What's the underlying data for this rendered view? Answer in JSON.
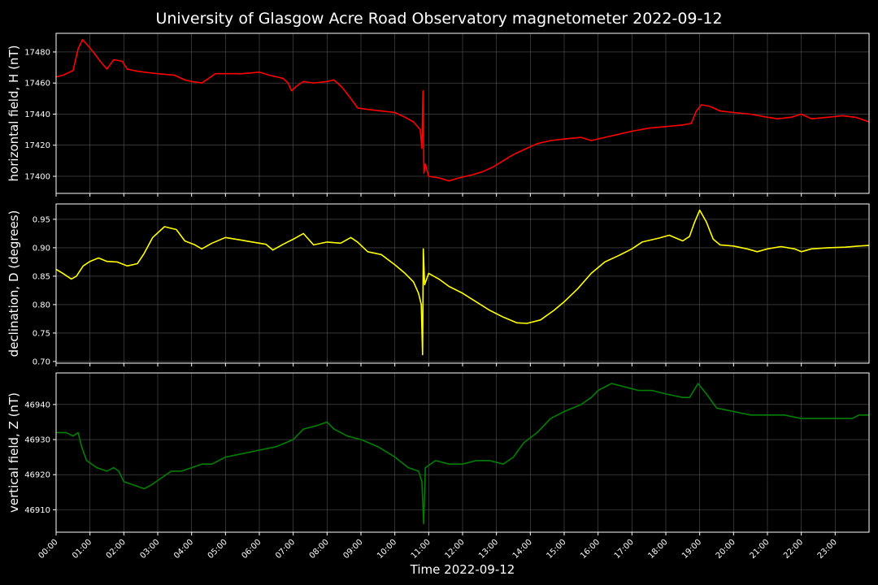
{
  "chart_data": {
    "type": "line",
    "title": "University of Glasgow Acre Road Observatory magnetometer 2022-09-12",
    "xlabel": "Time 2022-09-12",
    "x_ticks": [
      "00:00",
      "01:00",
      "02:00",
      "03:00",
      "04:00",
      "05:00",
      "06:00",
      "07:00",
      "08:00",
      "09:00",
      "10:00",
      "11:00",
      "12:00",
      "13:00",
      "14:00",
      "15:00",
      "16:00",
      "17:00",
      "18:00",
      "19:00",
      "20:00",
      "21:00",
      "22:00",
      "23:00"
    ],
    "xlim_hours": [
      0,
      24
    ],
    "grid": true,
    "panels": [
      {
        "id": "h",
        "ylabel": "horizontal field, H (nT)",
        "color": "#ff0000",
        "ylim": [
          17389,
          17492
        ],
        "yticks": [
          17400,
          17420,
          17440,
          17460,
          17480
        ],
        "ytick_labels": [
          "17400",
          "17420",
          "17440",
          "17460",
          "17480"
        ],
        "points": [
          [
            0.0,
            17464
          ],
          [
            0.2,
            17465
          ],
          [
            0.5,
            17468
          ],
          [
            0.65,
            17482
          ],
          [
            0.78,
            17488
          ],
          [
            0.9,
            17485
          ],
          [
            1.1,
            17480
          ],
          [
            1.3,
            17474
          ],
          [
            1.5,
            17469
          ],
          [
            1.7,
            17475
          ],
          [
            1.95,
            17474
          ],
          [
            2.1,
            17469
          ],
          [
            2.3,
            17468
          ],
          [
            2.6,
            17467
          ],
          [
            3.0,
            17466
          ],
          [
            3.5,
            17465
          ],
          [
            3.8,
            17462
          ],
          [
            4.0,
            17461
          ],
          [
            4.3,
            17460
          ],
          [
            4.5,
            17463
          ],
          [
            4.7,
            17466
          ],
          [
            5.0,
            17466
          ],
          [
            5.5,
            17466
          ],
          [
            6.0,
            17467
          ],
          [
            6.3,
            17465
          ],
          [
            6.7,
            17463
          ],
          [
            6.85,
            17460
          ],
          [
            6.95,
            17455
          ],
          [
            7.1,
            17458
          ],
          [
            7.3,
            17461
          ],
          [
            7.6,
            17460
          ],
          [
            8.0,
            17461
          ],
          [
            8.2,
            17462
          ],
          [
            8.45,
            17457
          ],
          [
            8.7,
            17450
          ],
          [
            8.9,
            17444
          ],
          [
            9.2,
            17443
          ],
          [
            9.6,
            17442
          ],
          [
            10.0,
            17441
          ],
          [
            10.3,
            17438
          ],
          [
            10.55,
            17435
          ],
          [
            10.75,
            17430
          ],
          [
            10.8,
            17418
          ],
          [
            10.83,
            17455
          ],
          [
            10.86,
            17402
          ],
          [
            10.9,
            17408
          ],
          [
            11.0,
            17400
          ],
          [
            11.3,
            17399
          ],
          [
            11.6,
            17397
          ],
          [
            11.9,
            17399
          ],
          [
            12.3,
            17401
          ],
          [
            12.6,
            17403
          ],
          [
            12.9,
            17406
          ],
          [
            13.2,
            17410
          ],
          [
            13.5,
            17414
          ],
          [
            13.8,
            17417
          ],
          [
            14.2,
            17421
          ],
          [
            14.6,
            17423
          ],
          [
            15.0,
            17424
          ],
          [
            15.5,
            17425
          ],
          [
            15.8,
            17423
          ],
          [
            16.2,
            17425
          ],
          [
            16.6,
            17427
          ],
          [
            17.0,
            17429
          ],
          [
            17.5,
            17431
          ],
          [
            18.0,
            17432
          ],
          [
            18.5,
            17433
          ],
          [
            18.75,
            17434
          ],
          [
            18.9,
            17442
          ],
          [
            19.05,
            17446
          ],
          [
            19.3,
            17445
          ],
          [
            19.6,
            17442
          ],
          [
            20.0,
            17441
          ],
          [
            20.5,
            17440
          ],
          [
            21.0,
            17438
          ],
          [
            21.3,
            17437
          ],
          [
            21.7,
            17438
          ],
          [
            22.0,
            17440
          ],
          [
            22.3,
            17437
          ],
          [
            22.8,
            17438
          ],
          [
            23.2,
            17439
          ],
          [
            23.6,
            17438
          ],
          [
            24.0,
            17435
          ]
        ]
      },
      {
        "id": "d",
        "ylabel": "declination, D (degrees)",
        "color": "#ffff00",
        "ylim": [
          0.697,
          0.977
        ],
        "yticks": [
          0.7,
          0.75,
          0.8,
          0.85,
          0.9,
          0.95
        ],
        "ytick_labels": [
          "0.70",
          "0.75",
          "0.80",
          "0.85",
          "0.90",
          "0.95"
        ],
        "points": [
          [
            0.0,
            0.862
          ],
          [
            0.2,
            0.855
          ],
          [
            0.45,
            0.845
          ],
          [
            0.6,
            0.85
          ],
          [
            0.8,
            0.868
          ],
          [
            1.0,
            0.876
          ],
          [
            1.25,
            0.882
          ],
          [
            1.5,
            0.876
          ],
          [
            1.8,
            0.875
          ],
          [
            2.1,
            0.868
          ],
          [
            2.4,
            0.872
          ],
          [
            2.6,
            0.89
          ],
          [
            2.85,
            0.918
          ],
          [
            3.2,
            0.937
          ],
          [
            3.55,
            0.932
          ],
          [
            3.8,
            0.912
          ],
          [
            4.1,
            0.905
          ],
          [
            4.3,
            0.898
          ],
          [
            4.6,
            0.908
          ],
          [
            5.0,
            0.918
          ],
          [
            5.4,
            0.914
          ],
          [
            5.8,
            0.91
          ],
          [
            6.2,
            0.906
          ],
          [
            6.4,
            0.896
          ],
          [
            6.7,
            0.906
          ],
          [
            7.0,
            0.915
          ],
          [
            7.3,
            0.925
          ],
          [
            7.6,
            0.905
          ],
          [
            8.0,
            0.91
          ],
          [
            8.4,
            0.908
          ],
          [
            8.7,
            0.918
          ],
          [
            8.9,
            0.91
          ],
          [
            9.2,
            0.893
          ],
          [
            9.6,
            0.888
          ],
          [
            10.0,
            0.87
          ],
          [
            10.3,
            0.855
          ],
          [
            10.55,
            0.84
          ],
          [
            10.7,
            0.82
          ],
          [
            10.78,
            0.8
          ],
          [
            10.82,
            0.712
          ],
          [
            10.84,
            0.898
          ],
          [
            10.88,
            0.835
          ],
          [
            11.0,
            0.855
          ],
          [
            11.3,
            0.845
          ],
          [
            11.6,
            0.832
          ],
          [
            12.0,
            0.82
          ],
          [
            12.4,
            0.805
          ],
          [
            12.8,
            0.79
          ],
          [
            13.2,
            0.778
          ],
          [
            13.6,
            0.768
          ],
          [
            13.9,
            0.767
          ],
          [
            14.3,
            0.773
          ],
          [
            14.7,
            0.79
          ],
          [
            15.0,
            0.805
          ],
          [
            15.4,
            0.828
          ],
          [
            15.8,
            0.855
          ],
          [
            16.2,
            0.875
          ],
          [
            16.6,
            0.886
          ],
          [
            17.0,
            0.898
          ],
          [
            17.3,
            0.91
          ],
          [
            17.8,
            0.917
          ],
          [
            18.1,
            0.922
          ],
          [
            18.5,
            0.912
          ],
          [
            18.7,
            0.92
          ],
          [
            18.85,
            0.945
          ],
          [
            19.0,
            0.966
          ],
          [
            19.2,
            0.945
          ],
          [
            19.4,
            0.915
          ],
          [
            19.6,
            0.905
          ],
          [
            20.0,
            0.903
          ],
          [
            20.4,
            0.898
          ],
          [
            20.7,
            0.893
          ],
          [
            21.0,
            0.898
          ],
          [
            21.4,
            0.902
          ],
          [
            21.8,
            0.898
          ],
          [
            22.0,
            0.893
          ],
          [
            22.3,
            0.898
          ],
          [
            22.8,
            0.9
          ],
          [
            23.3,
            0.901
          ],
          [
            23.7,
            0.903
          ],
          [
            24.0,
            0.904
          ]
        ]
      },
      {
        "id": "z",
        "ylabel": "vertical field, Z (nT)",
        "color": "#008000",
        "ylim": [
          46903.6,
          46949
        ],
        "yticks": [
          46910,
          46920,
          46930,
          46940
        ],
        "ytick_labels": [
          "46910",
          "46920",
          "46930",
          "46940"
        ],
        "points": [
          [
            0.0,
            46932
          ],
          [
            0.3,
            46932
          ],
          [
            0.5,
            46931
          ],
          [
            0.65,
            46932
          ],
          [
            0.75,
            46928
          ],
          [
            0.9,
            46924
          ],
          [
            1.2,
            46922
          ],
          [
            1.5,
            46921
          ],
          [
            1.7,
            46922
          ],
          [
            1.85,
            46921
          ],
          [
            2.0,
            46918
          ],
          [
            2.3,
            46917
          ],
          [
            2.6,
            46916
          ],
          [
            2.8,
            46917
          ],
          [
            3.1,
            46919
          ],
          [
            3.4,
            46921
          ],
          [
            3.7,
            46921
          ],
          [
            4.0,
            46922
          ],
          [
            4.3,
            46923
          ],
          [
            4.6,
            46923
          ],
          [
            5.0,
            46925
          ],
          [
            5.5,
            46926
          ],
          [
            6.0,
            46927
          ],
          [
            6.5,
            46928
          ],
          [
            7.0,
            46930
          ],
          [
            7.3,
            46933
          ],
          [
            7.7,
            46934
          ],
          [
            8.0,
            46935
          ],
          [
            8.2,
            46933
          ],
          [
            8.6,
            46931
          ],
          [
            9.0,
            46930
          ],
          [
            9.5,
            46928
          ],
          [
            10.0,
            46925
          ],
          [
            10.4,
            46922
          ],
          [
            10.7,
            46921
          ],
          [
            10.8,
            46918
          ],
          [
            10.85,
            46906
          ],
          [
            10.9,
            46922
          ],
          [
            11.2,
            46924
          ],
          [
            11.6,
            46923
          ],
          [
            12.0,
            46923
          ],
          [
            12.4,
            46924
          ],
          [
            12.8,
            46924
          ],
          [
            13.2,
            46923
          ],
          [
            13.5,
            46925
          ],
          [
            13.8,
            46929
          ],
          [
            14.2,
            46932
          ],
          [
            14.6,
            46936
          ],
          [
            15.0,
            46938
          ],
          [
            15.5,
            46940
          ],
          [
            15.8,
            46942
          ],
          [
            16.0,
            46944
          ],
          [
            16.4,
            46946
          ],
          [
            16.8,
            46945
          ],
          [
            17.2,
            46944
          ],
          [
            17.6,
            46944
          ],
          [
            18.0,
            46943
          ],
          [
            18.5,
            46942
          ],
          [
            18.7,
            46942
          ],
          [
            18.95,
            46946
          ],
          [
            19.2,
            46943
          ],
          [
            19.5,
            46939
          ],
          [
            20.0,
            46938
          ],
          [
            20.5,
            46937
          ],
          [
            21.0,
            46937
          ],
          [
            21.5,
            46937
          ],
          [
            22.0,
            46936
          ],
          [
            22.5,
            46936
          ],
          [
            23.0,
            46936
          ],
          [
            23.5,
            46936
          ],
          [
            23.7,
            46937
          ],
          [
            24.0,
            46937
          ]
        ]
      }
    ]
  }
}
